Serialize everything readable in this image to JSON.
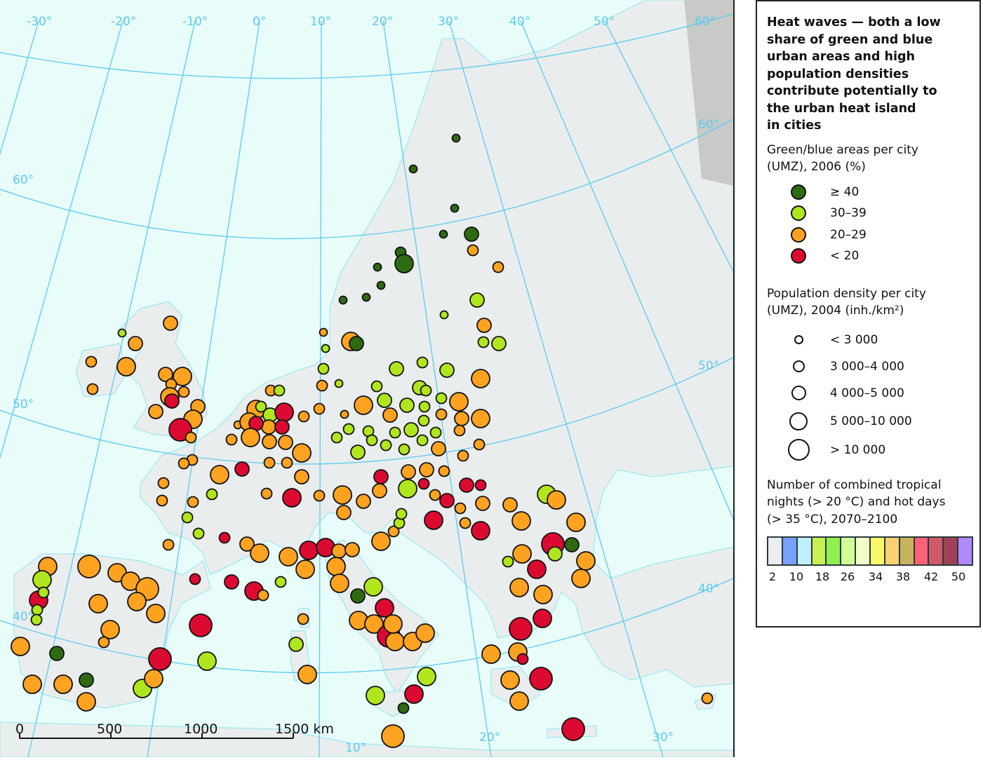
{
  "legend": {
    "title": "Heat waves — both a low\nshare of green and blue\nurban areas and high\npopulation densities\ncontribute potentially to\nthe urban heat island\nin cities",
    "green_blue": {
      "heading": "Green/blue areas per city\n(UMZ), 2006 (%)",
      "classes": [
        {
          "label": "≥ 40",
          "color": "#2e6a12"
        },
        {
          "label": "30–39",
          "color": "#b0e61e"
        },
        {
          "label": "20–29",
          "color": "#ffa220"
        },
        {
          "label": "< 20",
          "color": "#dc0a30"
        }
      ]
    },
    "density": {
      "heading": "Population density per city\n(UMZ), 2004 (inh./km²)",
      "classes": [
        {
          "label": "< 3 000"
        },
        {
          "label": "3 000–4 000"
        },
        {
          "label": "4 000–5 000"
        },
        {
          "label": "5 000–10 000"
        },
        {
          "label": "> 10 000"
        }
      ]
    },
    "climate": {
      "heading": "Number of combined tropical\nnights (> 20 °C) and hot days\n(> 35 °C), 2070–2100",
      "colors": [
        "#eaeeee",
        "#78a0ff",
        "#c0f0ff",
        "#c8f050",
        "#90f050",
        "#d0ff98",
        "#f0ffc8",
        "#f8f868",
        "#ffd070",
        "#c8b460",
        "#ff6078",
        "#d05868",
        "#a04058",
        "#b088ff"
      ],
      "tick_labels": [
        "2",
        "10",
        "18",
        "26",
        "34",
        "38",
        "42",
        "50"
      ]
    }
  },
  "map": {
    "graticule_labels": {
      "top": [
        "-30°",
        "-20°",
        "-10°",
        "0°",
        "10°",
        "20°",
        "30°",
        "40°",
        "50°",
        "60°"
      ],
      "left": [
        "60°",
        "50°",
        "40°"
      ],
      "right": [
        "60°",
        "50°",
        "40°"
      ],
      "bottom": [
        "10°",
        "20°",
        "30°"
      ]
    },
    "scale_bar": {
      "labels": [
        "0",
        "500",
        "1000",
        "1500 km"
      ]
    },
    "colors": {
      "sea": "#e8fcfa",
      "land": "#eaeded",
      "no_data": "#c8cac8",
      "graticule": "#5ccbf0",
      "border": "#3a4040"
    },
    "city_markers": [
      {
        "g": 0,
        "d": 0
      },
      {
        "g": 0,
        "d": 0
      },
      {
        "g": 0,
        "d": 0
      },
      {
        "g": 0,
        "d": 0
      },
      {
        "g": 0,
        "d": 2
      },
      {
        "g": 2,
        "d": 1
      },
      {
        "g": 0,
        "d": 1
      },
      {
        "g": 0,
        "d": 3
      },
      {
        "g": 0,
        "d": 0
      },
      {
        "g": 0,
        "d": 0
      },
      {
        "g": 0,
        "d": 0
      },
      {
        "g": 0,
        "d": 0
      },
      {
        "g": 2,
        "d": 1
      },
      {
        "g": 1,
        "d": 2
      },
      {
        "g": 1,
        "d": 0
      },
      {
        "g": 2,
        "d": 2
      },
      {
        "g": 1,
        "d": 1
      },
      {
        "g": 1,
        "d": 2
      },
      {
        "g": 2,
        "d": 0
      },
      {
        "g": 1,
        "d": 0
      },
      {
        "g": 2,
        "d": 3
      },
      {
        "g": 0,
        "d": 2
      },
      {
        "g": 1,
        "d": 1
      },
      {
        "g": 1,
        "d": 2
      },
      {
        "g": 1,
        "d": 2
      },
      {
        "g": 2,
        "d": 3
      },
      {
        "g": 1,
        "d": 1
      },
      {
        "g": 2,
        "d": 1
      },
      {
        "g": 1,
        "d": 0
      },
      {
        "g": 1,
        "d": 1
      },
      {
        "g": 1,
        "d": 2
      },
      {
        "g": 1,
        "d": 1
      },
      {
        "g": 2,
        "d": 3
      },
      {
        "g": 1,
        "d": 2
      },
      {
        "g": 1,
        "d": 2
      },
      {
        "g": 1,
        "d": 1
      },
      {
        "g": 1,
        "d": 1
      },
      {
        "g": 2,
        "d": 3
      },
      {
        "g": 2,
        "d": 1
      },
      {
        "g": 2,
        "d": 1
      },
      {
        "g": 2,
        "d": 0
      },
      {
        "g": 2,
        "d": 2
      },
      {
        "g": 1,
        "d": 2
      },
      {
        "g": 1,
        "d": 1
      },
      {
        "g": 2,
        "d": 1
      },
      {
        "g": 2,
        "d": 2
      },
      {
        "g": 2,
        "d": 3
      },
      {
        "g": 1,
        "d": 1
      },
      {
        "g": 1,
        "d": 1
      },
      {
        "g": 1,
        "d": 1
      },
      {
        "g": 1,
        "d": 1
      },
      {
        "g": 2,
        "d": 1
      },
      {
        "g": 1,
        "d": 1
      },
      {
        "g": 1,
        "d": 2
      },
      {
        "g": 1,
        "d": 1
      },
      {
        "g": 1,
        "d": 1
      },
      {
        "g": 1,
        "d": 1
      },
      {
        "g": 1,
        "d": 1
      },
      {
        "g": 2,
        "d": 2
      },
      {
        "g": 2,
        "d": 1
      },
      {
        "g": 2,
        "d": 1
      },
      {
        "g": 2,
        "d": 1
      },
      {
        "g": 1,
        "d": 1
      },
      {
        "g": 2,
        "d": 3
      },
      {
        "g": 1,
        "d": 1
      },
      {
        "g": 1,
        "d": 2
      },
      {
        "g": 3,
        "d": 3
      },
      {
        "g": 2,
        "d": 0
      },
      {
        "g": 2,
        "d": 3
      },
      {
        "g": 2,
        "d": 2
      },
      {
        "g": 3,
        "d": 2
      },
      {
        "g": 3,
        "d": 2
      },
      {
        "g": 2,
        "d": 1
      },
      {
        "g": 2,
        "d": 3
      },
      {
        "g": 2,
        "d": 2
      },
      {
        "g": 2,
        "d": 2
      },
      {
        "g": 2,
        "d": 3
      },
      {
        "g": 2,
        "d": 1
      },
      {
        "g": 2,
        "d": 1
      },
      {
        "g": 3,
        "d": 2
      },
      {
        "g": 2,
        "d": 3
      },
      {
        "g": 2,
        "d": 1
      },
      {
        "g": 2,
        "d": 1
      },
      {
        "g": 2,
        "d": 1
      },
      {
        "g": 2,
        "d": 1
      },
      {
        "g": 2,
        "d": 1
      },
      {
        "g": 1,
        "d": 1
      },
      {
        "g": 1,
        "d": 1
      },
      {
        "g": 1,
        "d": 1
      },
      {
        "g": 2,
        "d": 1
      },
      {
        "g": 2,
        "d": 1
      },
      {
        "g": 3,
        "d": 3
      },
      {
        "g": 2,
        "d": 2
      },
      {
        "g": 2,
        "d": 1
      },
      {
        "g": 2,
        "d": 3
      },
      {
        "g": 2,
        "d": 2
      },
      {
        "g": 2,
        "d": 2
      },
      {
        "g": 3,
        "d": 2
      },
      {
        "g": 2,
        "d": 2
      },
      {
        "g": 1,
        "d": 3
      },
      {
        "g": 3,
        "d": 1
      },
      {
        "g": 2,
        "d": 1
      },
      {
        "g": 3,
        "d": 2
      },
      {
        "g": 2,
        "d": 2
      },
      {
        "g": 2,
        "d": 2
      },
      {
        "g": 2,
        "d": 1
      },
      {
        "g": 3,
        "d": 2
      },
      {
        "g": 3,
        "d": 1
      },
      {
        "g": 2,
        "d": 2
      },
      {
        "g": 3,
        "d": 3
      },
      {
        "g": 2,
        "d": 1
      },
      {
        "g": 2,
        "d": 1
      },
      {
        "g": 3,
        "d": 3
      },
      {
        "g": 2,
        "d": 2
      },
      {
        "g": 2,
        "d": 3
      },
      {
        "g": 1,
        "d": 3
      },
      {
        "g": 2,
        "d": 3
      },
      {
        "g": 2,
        "d": 3
      },
      {
        "g": 3,
        "d": 4
      },
      {
        "g": 0,
        "d": 2
      },
      {
        "g": 1,
        "d": 2
      },
      {
        "g": 1,
        "d": 1
      },
      {
        "g": 2,
        "d": 3
      },
      {
        "g": 3,
        "d": 3
      },
      {
        "g": 2,
        "d": 3
      },
      {
        "g": 2,
        "d": 3
      },
      {
        "g": 2,
        "d": 3
      },
      {
        "g": 2,
        "d": 3
      },
      {
        "g": 3,
        "d": 3
      },
      {
        "g": 3,
        "d": 4
      },
      {
        "g": 2,
        "d": 3
      },
      {
        "g": 2,
        "d": 3
      },
      {
        "g": 3,
        "d": 1
      },
      {
        "g": 3,
        "d": 4
      },
      {
        "g": 2,
        "d": 3
      },
      {
        "g": 2,
        "d": 3
      },
      {
        "g": 3,
        "d": 4
      },
      {
        "g": 2,
        "d": 1
      },
      {
        "g": 1,
        "d": 0
      },
      {
        "g": 2,
        "d": 2
      },
      {
        "g": 2,
        "d": 2
      },
      {
        "g": 2,
        "d": 1
      },
      {
        "g": 2,
        "d": 3
      },
      {
        "g": 2,
        "d": 1
      },
      {
        "g": 2,
        "d": 2
      },
      {
        "g": 2,
        "d": 3
      },
      {
        "g": 2,
        "d": 1
      },
      {
        "g": 2,
        "d": 1
      },
      {
        "g": 2,
        "d": 3
      },
      {
        "g": 3,
        "d": 2
      },
      {
        "g": 2,
        "d": 2
      },
      {
        "g": 2,
        "d": 2
      },
      {
        "g": 2,
        "d": 3
      },
      {
        "g": 3,
        "d": 4
      },
      {
        "g": 2,
        "d": 1
      },
      {
        "g": 2,
        "d": 3
      },
      {
        "g": 1,
        "d": 3
      },
      {
        "g": 3,
        "d": 3
      },
      {
        "g": 1,
        "d": 1
      },
      {
        "g": 1,
        "d": 1
      },
      {
        "g": 1,
        "d": 1
      },
      {
        "g": 2,
        "d": 4
      },
      {
        "g": 2,
        "d": 3
      },
      {
        "g": 2,
        "d": 3
      },
      {
        "g": 2,
        "d": 4
      },
      {
        "g": 2,
        "d": 3
      },
      {
        "g": 2,
        "d": 3
      },
      {
        "g": 2,
        "d": 3
      },
      {
        "g": 2,
        "d": 3
      },
      {
        "g": 3,
        "d": 4
      },
      {
        "g": 3,
        "d": 4
      },
      {
        "g": 1,
        "d": 3
      },
      {
        "g": 2,
        "d": 3
      },
      {
        "g": 0,
        "d": 2
      },
      {
        "g": 2,
        "d": 1
      },
      {
        "g": 2,
        "d": 3
      },
      {
        "g": 2,
        "d": 3
      },
      {
        "g": 0,
        "d": 2
      },
      {
        "g": 1,
        "d": 3
      },
      {
        "g": 2,
        "d": 3
      },
      {
        "g": 2,
        "d": 3
      },
      {
        "g": 3,
        "d": 1
      },
      {
        "g": 2,
        "d": 2
      },
      {
        "g": 2,
        "d": 3
      },
      {
        "g": 3,
        "d": 2
      },
      {
        "g": 3,
        "d": 3
      },
      {
        "g": 2,
        "d": 1
      },
      {
        "g": 1,
        "d": 1
      },
      {
        "g": 3,
        "d": 1
      },
      {
        "g": 2,
        "d": 3
      },
      {
        "g": 3,
        "d": 3
      },
      {
        "g": 3,
        "d": 3
      },
      {
        "g": 2,
        "d": 2
      },
      {
        "g": 2,
        "d": 2
      },
      {
        "g": 2,
        "d": 3
      },
      {
        "g": 2,
        "d": 3
      },
      {
        "g": 2,
        "d": 3
      },
      {
        "g": 0,
        "d": 2
      },
      {
        "g": 1,
        "d": 3
      },
      {
        "g": 3,
        "d": 3
      },
      {
        "g": 2,
        "d": 3
      },
      {
        "g": 2,
        "d": 3
      },
      {
        "g": 3,
        "d": 4
      },
      {
        "g": 2,
        "d": 3
      },
      {
        "g": 2,
        "d": 3
      },
      {
        "g": 2,
        "d": 3
      },
      {
        "g": 2,
        "d": 3
      },
      {
        "g": 3,
        "d": 3
      },
      {
        "g": 1,
        "d": 3
      },
      {
        "g": 1,
        "d": 3
      },
      {
        "g": 2,
        "d": 2
      },
      {
        "g": 2,
        "d": 4
      },
      {
        "g": 0,
        "d": 1
      },
      {
        "g": 2,
        "d": 1
      },
      {
        "g": 1,
        "d": 2
      },
      {
        "g": 2,
        "d": 3
      },
      {
        "g": 2,
        "d": 3
      },
      {
        "g": 2,
        "d": 1
      },
      {
        "g": 1,
        "d": 1
      },
      {
        "g": 1,
        "d": 1
      }
    ]
  }
}
